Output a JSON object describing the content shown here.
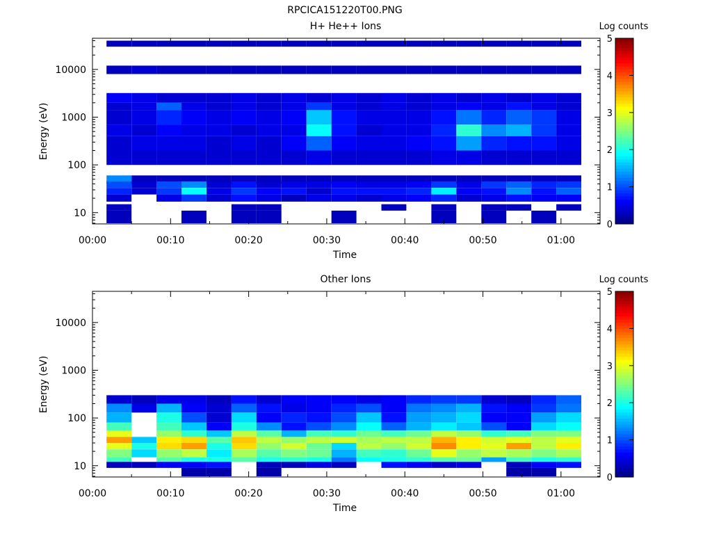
{
  "page_title": "RPCICA151220T00.PNG",
  "chart_data": [
    {
      "type": "heatmap",
      "title": "H+ He++ Ions",
      "xlabel": "Time",
      "ylabel": "Energy (eV)",
      "yscale": "log",
      "xlim_min": [
        0,
        65
      ],
      "ylim": [
        5.8,
        45000
      ],
      "xticks": [
        "00:00",
        "00:10",
        "00:20",
        "00:30",
        "00:40",
        "00:50",
        "01:00"
      ],
      "yticks": [
        "10",
        "100",
        "1000",
        "10000"
      ],
      "colorbar": {
        "label": "Log counts",
        "range": [
          0,
          5
        ],
        "ticks": [
          "0",
          "1",
          "2",
          "3",
          "4",
          "5"
        ],
        "colormap": "jet"
      },
      "time_bins_min": [
        [
          1.8,
          5
        ],
        [
          5,
          8.2
        ],
        [
          8.2,
          11.4
        ],
        [
          11.4,
          14.6
        ],
        [
          14.6,
          17.8
        ],
        [
          17.8,
          21
        ],
        [
          21,
          24.2
        ],
        [
          24.2,
          27.4
        ],
        [
          27.4,
          30.6
        ],
        [
          30.6,
          33.8
        ],
        [
          33.8,
          37
        ],
        [
          37,
          40.2
        ],
        [
          40.2,
          43.4
        ],
        [
          43.4,
          46.6
        ],
        [
          46.6,
          49.8
        ],
        [
          49.8,
          53
        ],
        [
          53,
          56.2
        ],
        [
          56.2,
          59.4
        ],
        [
          59.4,
          62.6
        ]
      ],
      "energy_bands_eV": [
        {
          "range": [
            30000,
            40000
          ],
          "values": [
            0.3,
            0.3,
            0.3,
            0.3,
            0.3,
            0.3,
            0.3,
            0.3,
            0.3,
            0.3,
            0.3,
            0.3,
            0.3,
            0.3,
            0.3,
            0.3,
            0.3,
            0.3,
            0.3
          ]
        },
        {
          "range": [
            8000,
            12000
          ],
          "values": [
            0.3,
            0.4,
            0.3,
            0.3,
            0.3,
            0.3,
            0.3,
            0.3,
            0.3,
            0.3,
            0.3,
            0.3,
            0.3,
            0.3,
            0.3,
            0.3,
            0.3,
            0.3,
            0.3
          ]
        },
        {
          "range": [
            2000,
            3200
          ],
          "values": [
            0.6,
            0.5,
            0.4,
            0.4,
            0.4,
            0.5,
            0.4,
            0.5,
            0.4,
            0.5,
            0.4,
            0.5,
            0.4,
            0.5,
            0.4,
            0.5,
            0.4,
            0.5,
            0.4
          ]
        },
        {
          "range": [
            1400,
            2000
          ],
          "values": [
            0.4,
            0.5,
            1.1,
            0.5,
            0.4,
            0.5,
            0.4,
            0.5,
            0.9,
            0.5,
            0.4,
            0.5,
            0.4,
            0.5,
            0.6,
            0.5,
            0.7,
            0.5,
            0.4
          ]
        },
        {
          "range": [
            700,
            1400
          ],
          "values": [
            0.4,
            0.5,
            0.8,
            0.6,
            0.5,
            0.6,
            0.5,
            0.6,
            1.6,
            0.7,
            0.5,
            0.5,
            0.5,
            0.7,
            1.2,
            0.8,
            1.1,
            0.9,
            0.5
          ]
        },
        {
          "range": [
            400,
            700
          ],
          "values": [
            0.5,
            0.4,
            0.6,
            0.5,
            0.5,
            0.4,
            0.5,
            0.5,
            1.9,
            0.7,
            0.4,
            0.5,
            0.5,
            0.8,
            2.1,
            1.3,
            1.5,
            0.9,
            0.5
          ]
        },
        {
          "range": [
            200,
            400
          ],
          "values": [
            0.4,
            0.5,
            0.5,
            0.5,
            0.4,
            0.5,
            0.4,
            0.6,
            1.1,
            0.6,
            0.5,
            0.5,
            0.6,
            0.7,
            1.4,
            0.8,
            0.7,
            0.7,
            0.5
          ]
        },
        {
          "range": [
            100,
            200
          ],
          "values": [
            0.4,
            0.4,
            0.4,
            0.4,
            0.4,
            0.4,
            0.4,
            0.4,
            0.5,
            0.4,
            0.4,
            0.4,
            0.4,
            0.5,
            0.5,
            0.4,
            0.4,
            0.4,
            0.4
          ]
        },
        {
          "range": [
            40,
            60
          ],
          "values": [
            1.3,
            0.3,
            0.3,
            0.3,
            0.3,
            0.3,
            0.3,
            0.3,
            0.3,
            0.3,
            0.3,
            0.3,
            0.3,
            0.3,
            0.3,
            0.3,
            0.3,
            0.3,
            0.3
          ]
        },
        {
          "range": [
            33,
            45
          ],
          "values": [
            1.0,
            0.4,
            1.0,
            1.3,
            0.4,
            0.7,
            0.4,
            0.5,
            0.5,
            0.6,
            0.5,
            0.5,
            0.6,
            0.9,
            0.5,
            0.9,
            1.1,
            0.8,
            0.9
          ]
        },
        {
          "range": [
            24,
            33
          ],
          "values": [
            0.8,
            0.4,
            0.9,
            1.9,
            0.5,
            0.9,
            0.6,
            0.7,
            0.4,
            0.7,
            0.7,
            0.7,
            0.8,
            1.8,
            0.6,
            0.7,
            1.3,
            0.7,
            1.1
          ]
        },
        {
          "range": [
            17,
            24
          ],
          "values": [
            0.4,
            0,
            0.5,
            0.9,
            0.4,
            0.7,
            0.5,
            0.3,
            0.5,
            0.5,
            0.4,
            0.5,
            0.6,
            0.8,
            0.4,
            0.5,
            0.7,
            0.6,
            0.6
          ]
        },
        {
          "range": [
            11,
            15
          ],
          "values": [
            0.3,
            0,
            0,
            0,
            0,
            0.3,
            0.3,
            0,
            0,
            0,
            0,
            0.3,
            0,
            0.3,
            0,
            0.3,
            0.3,
            0,
            0.3
          ]
        },
        {
          "range": [
            6,
            11
          ],
          "values": [
            0.3,
            0,
            0,
            0.3,
            0,
            0.3,
            0.3,
            0,
            0,
            0.3,
            0,
            0,
            0,
            0.3,
            0,
            0.3,
            0,
            0.3,
            0
          ]
        }
      ]
    },
    {
      "type": "heatmap",
      "title": "Other Ions",
      "xlabel": "Time",
      "ylabel": "Energy (eV)",
      "yscale": "log",
      "xlim_min": [
        0,
        65
      ],
      "ylim": [
        5.8,
        45000
      ],
      "xticks": [
        "00:00",
        "00:10",
        "00:20",
        "00:30",
        "00:40",
        "00:50",
        "01:00"
      ],
      "yticks": [
        "10",
        "100",
        "1000",
        "10000"
      ],
      "colorbar": {
        "label": "Log counts",
        "range": [
          0,
          5
        ],
        "ticks": [
          "0",
          "1",
          "2",
          "3",
          "4",
          "5"
        ],
        "colormap": "jet"
      },
      "time_bins_min": [
        [
          1.8,
          5
        ],
        [
          5,
          8.2
        ],
        [
          8.2,
          11.4
        ],
        [
          11.4,
          14.6
        ],
        [
          14.6,
          17.8
        ],
        [
          17.8,
          21
        ],
        [
          21,
          24.2
        ],
        [
          24.2,
          27.4
        ],
        [
          27.4,
          30.6
        ],
        [
          30.6,
          33.8
        ],
        [
          33.8,
          37
        ],
        [
          37,
          40.2
        ],
        [
          40.2,
          43.4
        ],
        [
          43.4,
          46.6
        ],
        [
          46.6,
          49.8
        ],
        [
          49.8,
          53
        ],
        [
          53,
          56.2
        ],
        [
          56.2,
          59.4
        ],
        [
          59.4,
          62.6
        ]
      ],
      "energy_bands_eV": [
        {
          "range": [
            200,
            300
          ],
          "values": [
            0.4,
            0.3,
            0.5,
            0.5,
            0.3,
            0.7,
            0.4,
            0.6,
            0.6,
            0.6,
            0.5,
            0.6,
            0.8,
            0.9,
            0.9,
            0.4,
            0.3,
            0.8,
            1.1
          ]
        },
        {
          "range": [
            130,
            200
          ],
          "values": [
            1.3,
            0.5,
            1.5,
            0.6,
            0.4,
            1.1,
            0.7,
            0.5,
            0.6,
            0.8,
            1.0,
            0.6,
            1.2,
            1.3,
            1.5,
            0.7,
            0.6,
            0.9,
            1.2
          ]
        },
        {
          "range": [
            80,
            130
          ],
          "values": [
            1.5,
            0,
            2.0,
            1.0,
            0.4,
            1.7,
            0.6,
            0.8,
            0.7,
            1.0,
            1.6,
            0.7,
            1.4,
            1.5,
            1.7,
            0.6,
            0.6,
            1.4,
            1.7
          ]
        },
        {
          "range": [
            55,
            80
          ],
          "values": [
            2.2,
            0,
            2.2,
            1.6,
            0.6,
            2.0,
            1.3,
            0.7,
            1.0,
            1.3,
            1.9,
            1.1,
            1.5,
            1.8,
            1.6,
            1.0,
            0.6,
            1.7,
            1.9
          ]
        },
        {
          "range": [
            40,
            55
          ],
          "values": [
            3.0,
            0,
            2.6,
            2.1,
            1.6,
            2.8,
            2.3,
            1.5,
            2.2,
            2.1,
            2.4,
            2.2,
            2.4,
            2.8,
            2.6,
            2.1,
            2.2,
            2.5,
            2.5
          ]
        },
        {
          "range": [
            30,
            40
          ],
          "values": [
            3.6,
            1.6,
            3.2,
            3.3,
            2.3,
            3.4,
            2.8,
            2.6,
            2.8,
            2.9,
            2.7,
            2.8,
            2.8,
            3.5,
            3.2,
            2.9,
            3.0,
            2.8,
            3.0
          ]
        },
        {
          "range": [
            22,
            30
          ],
          "values": [
            3.0,
            2.0,
            3.3,
            3.6,
            2.0,
            3.3,
            2.6,
            2.9,
            2.4,
            1.7,
            2.8,
            2.6,
            2.9,
            3.7,
            3.2,
            3.0,
            3.6,
            2.8,
            3.2
          ]
        },
        {
          "range": [
            15,
            22
          ],
          "values": [
            2.5,
            1.7,
            2.6,
            2.8,
            1.8,
            2.7,
            2.3,
            2.5,
            2.4,
            1.5,
            2.2,
            2.1,
            2.4,
            3.0,
            2.6,
            2.8,
            2.7,
            2.5,
            2.7
          ]
        },
        {
          "range": [
            12,
            15
          ],
          "values": [
            2.2,
            0,
            2.3,
            2.0,
            2.0,
            2.3,
            2.0,
            2.1,
            2.0,
            1.2,
            1.9,
            2.0,
            2.1,
            2.3,
            2.4,
            1.4,
            2.2,
            2.0,
            2.1
          ]
        },
        {
          "range": [
            9,
            12
          ],
          "values": [
            0.3,
            0.3,
            0.6,
            0.6,
            0.7,
            0,
            0.3,
            0.3,
            0.5,
            0.3,
            0,
            0.7,
            0.6,
            0.4,
            0.5,
            0,
            0.3,
            0.6,
            0.7
          ]
        },
        {
          "range": [
            6,
            9
          ],
          "values": [
            0,
            0,
            0,
            0.2,
            0.2,
            0,
            0.2,
            0,
            0,
            0,
            0,
            0,
            0,
            0,
            0,
            0,
            0.2,
            0.2,
            0
          ]
        }
      ]
    }
  ]
}
